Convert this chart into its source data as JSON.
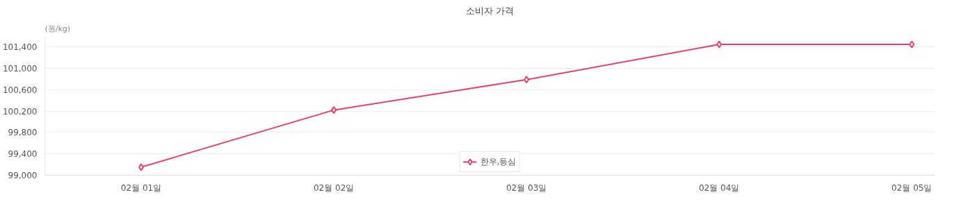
{
  "chart_data": {
    "type": "line",
    "title": "소비자 가격",
    "ylabel": "(원/kg)",
    "categories": [
      "02월 01일",
      "02월 02일",
      "02월 03일",
      "02월 04일",
      "02월 05일"
    ],
    "series": [
      {
        "name": "한우,등심",
        "color": "#ec3d6c",
        "values": [
          99150,
          100220,
          100790,
          101450,
          101450
        ]
      }
    ],
    "ylim": [
      99000,
      101600
    ],
    "yticks": [
      {
        "value": 99000,
        "label": "99,000"
      },
      {
        "value": 99400,
        "label": "99,400"
      },
      {
        "value": 99800,
        "label": "99,800"
      },
      {
        "value": 100200,
        "label": "100,200"
      },
      {
        "value": 100600,
        "label": "100,600"
      },
      {
        "value": 101000,
        "label": "101,000"
      },
      {
        "value": 101400,
        "label": "101,400"
      }
    ],
    "grid": "y",
    "legend": "bottom",
    "marker": "diamond",
    "line_style": "solid"
  }
}
